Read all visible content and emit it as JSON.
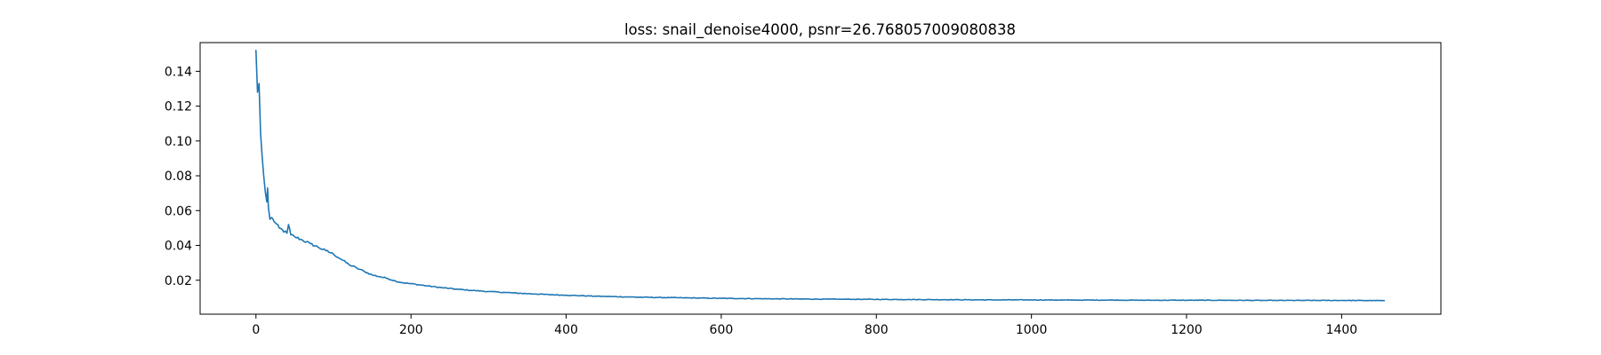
{
  "chart_data": {
    "type": "line",
    "title": "loss: snail_denoise4000, psnr=26.768057009080838",
    "xlabel": "",
    "ylabel": "",
    "xlim": [
      -72,
      1528
    ],
    "ylim": [
      0.0005,
      0.1565
    ],
    "x_ticks": [
      0,
      200,
      400,
      600,
      800,
      1000,
      1200,
      1400
    ],
    "x_tick_labels": [
      "0",
      "200",
      "400",
      "600",
      "800",
      "1000",
      "1200",
      "1400"
    ],
    "y_ticks": [
      0.02,
      0.04,
      0.06,
      0.08,
      0.1,
      0.12,
      0.14
    ],
    "y_tick_labels": [
      "0.02",
      "0.04",
      "0.06",
      "0.08",
      "0.10",
      "0.12",
      "0.14"
    ],
    "grid": false,
    "series": [
      {
        "name": "loss",
        "color": "#1f77b4",
        "x": [
          0,
          2,
          4,
          5,
          6,
          8,
          10,
          12,
          14,
          15,
          16,
          18,
          20,
          25,
          30,
          40,
          42,
          45,
          50,
          60,
          70,
          80,
          90,
          100,
          110,
          120,
          130,
          140,
          150,
          160,
          170,
          180,
          190,
          200,
          220,
          240,
          260,
          280,
          300,
          320,
          340,
          360,
          380,
          400,
          420,
          440,
          460,
          480,
          500,
          550,
          600,
          650,
          700,
          750,
          800,
          850,
          900,
          950,
          1000,
          1050,
          1100,
          1150,
          1200,
          1250,
          1300,
          1350,
          1400,
          1455
        ],
        "values": [
          0.152,
          0.128,
          0.133,
          0.118,
          0.104,
          0.091,
          0.08,
          0.071,
          0.065,
          0.073,
          0.062,
          0.055,
          0.056,
          0.053,
          0.05,
          0.047,
          0.052,
          0.046,
          0.045,
          0.043,
          0.041,
          0.039,
          0.037,
          0.035,
          0.032,
          0.029,
          0.027,
          0.025,
          0.023,
          0.022,
          0.021,
          0.0195,
          0.0185,
          0.018,
          0.0168,
          0.0157,
          0.0148,
          0.0141,
          0.0135,
          0.013,
          0.0125,
          0.0121,
          0.0117,
          0.0114,
          0.0111,
          0.0108,
          0.0106,
          0.0104,
          0.0102,
          0.0099,
          0.0096,
          0.0094,
          0.0092,
          0.0091,
          0.009,
          0.0089,
          0.0088,
          0.0087,
          0.0087,
          0.0086,
          0.0086,
          0.0085,
          0.0085,
          0.0085,
          0.0084,
          0.0084,
          0.0084,
          0.0083
        ]
      }
    ]
  }
}
